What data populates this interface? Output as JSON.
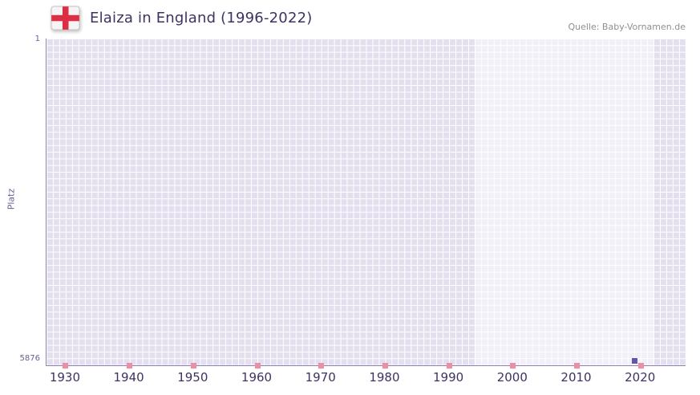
{
  "header": {
    "title": "Elaiza in England (1996-2022)",
    "source": "Quelle: Baby-Vornamen.de",
    "flag_icon": "england-flag-icon"
  },
  "chart_data": {
    "type": "scatter",
    "title": "Elaiza in England (1996-2022)",
    "xlabel": "",
    "ylabel": "Platz",
    "y_tick_top": "1",
    "y_tick_bottom": "5876",
    "y_range": [
      1,
      5876
    ],
    "y_axis_inverted": true,
    "x_range": [
      1927,
      2027
    ],
    "x_ticks": [
      "1930",
      "1940",
      "1950",
      "1960",
      "1970",
      "1980",
      "1990",
      "2000",
      "2010",
      "2020"
    ],
    "grid": "on",
    "legend": "none",
    "highlight_band": {
      "from": 1994,
      "to": 2022
    },
    "decade_marks": [
      1930,
      1940,
      1950,
      1960,
      1970,
      1980,
      1990,
      2000,
      2010,
      2020
    ],
    "series": [
      {
        "name": "Elaiza",
        "points": [
          {
            "year": 2019,
            "rank": 5876
          }
        ]
      }
    ],
    "colors": {
      "title": "#3f3261",
      "label": "#695d8f",
      "source": "#8f8f8f",
      "plot_bg": "#e3dfee",
      "band": "#ffffff80",
      "grid": "#ffffff",
      "axis": "#8d7fb8",
      "mark": "#ec8fa4",
      "point": "#6157a5",
      "flag_cross": "#dc2f44",
      "flag_field": "#f6f4f4"
    }
  }
}
